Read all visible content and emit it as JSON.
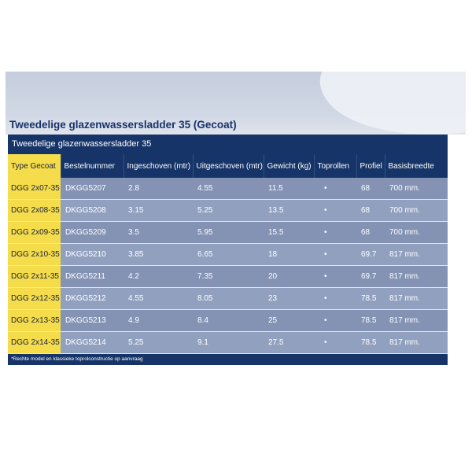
{
  "document": {
    "title": "Tweedelige glazenwassersladder 35 (Gecoat)",
    "table_title": "Tweedelige glazenwassersladder 35",
    "columns": [
      "Type Gecoat",
      "Bestelnummer",
      "Ingeschoven (mtr)",
      "Uitgeschoven (mtr)",
      "Gewicht (kg)",
      "Toprollen",
      "Profiel",
      "Basisbreedte"
    ],
    "rows": [
      {
        "type": "DGG 2x07-35",
        "bestelnummer": "DKGG5207",
        "ingeschoven": "2.8",
        "uitgeschoven": "4.55",
        "gewicht": "11.5",
        "toprollen": "•",
        "profiel": "68",
        "basisbreedte": "700 mm."
      },
      {
        "type": "DGG 2x08-35",
        "bestelnummer": "DKGG5208",
        "ingeschoven": "3.15",
        "uitgeschoven": "5.25",
        "gewicht": "13.5",
        "toprollen": "•",
        "profiel": "68",
        "basisbreedte": "700 mm."
      },
      {
        "type": "DGG 2x09-35",
        "bestelnummer": "DKGG5209",
        "ingeschoven": "3.5",
        "uitgeschoven": "5.95",
        "gewicht": "15.5",
        "toprollen": "•",
        "profiel": "68",
        "basisbreedte": "700 mm."
      },
      {
        "type": "DGG 2x10-35",
        "bestelnummer": "DKGG5210",
        "ingeschoven": "3.85",
        "uitgeschoven": "6.65",
        "gewicht": "18",
        "toprollen": "•",
        "profiel": "69.7",
        "basisbreedte": "817 mm."
      },
      {
        "type": "DGG 2x11-35",
        "bestelnummer": "DKGG5211",
        "ingeschoven": "4.2",
        "uitgeschoven": "7.35",
        "gewicht": "20",
        "toprollen": "•",
        "profiel": "69.7",
        "basisbreedte": "817 mm."
      },
      {
        "type": "DGG 2x12-35",
        "bestelnummer": "DKGG5212",
        "ingeschoven": "4.55",
        "uitgeschoven": "8.05",
        "gewicht": "23",
        "toprollen": "•",
        "profiel": "78.5",
        "basisbreedte": "817 mm."
      },
      {
        "type": "DGG 2x13-35",
        "bestelnummer": "DKGG5213",
        "ingeschoven": "4.9",
        "uitgeschoven": "8.4",
        "gewicht": "25",
        "toprollen": "•",
        "profiel": "78.5",
        "basisbreedte": "817 mm."
      },
      {
        "type": "DGG 2x14-35",
        "bestelnummer": "DKGG5214",
        "ingeschoven": "5.25",
        "uitgeschoven": "9.1",
        "gewicht": "27.5",
        "toprollen": "•",
        "profiel": "78.5",
        "basisbreedte": "817 mm."
      }
    ],
    "footnote": "*Rechte model en klassieke toprolconstructie op aanvraag"
  },
  "colors": {
    "navy": "#163468",
    "yellow": "#f4dc4a",
    "row_blue": "#8492b4"
  }
}
